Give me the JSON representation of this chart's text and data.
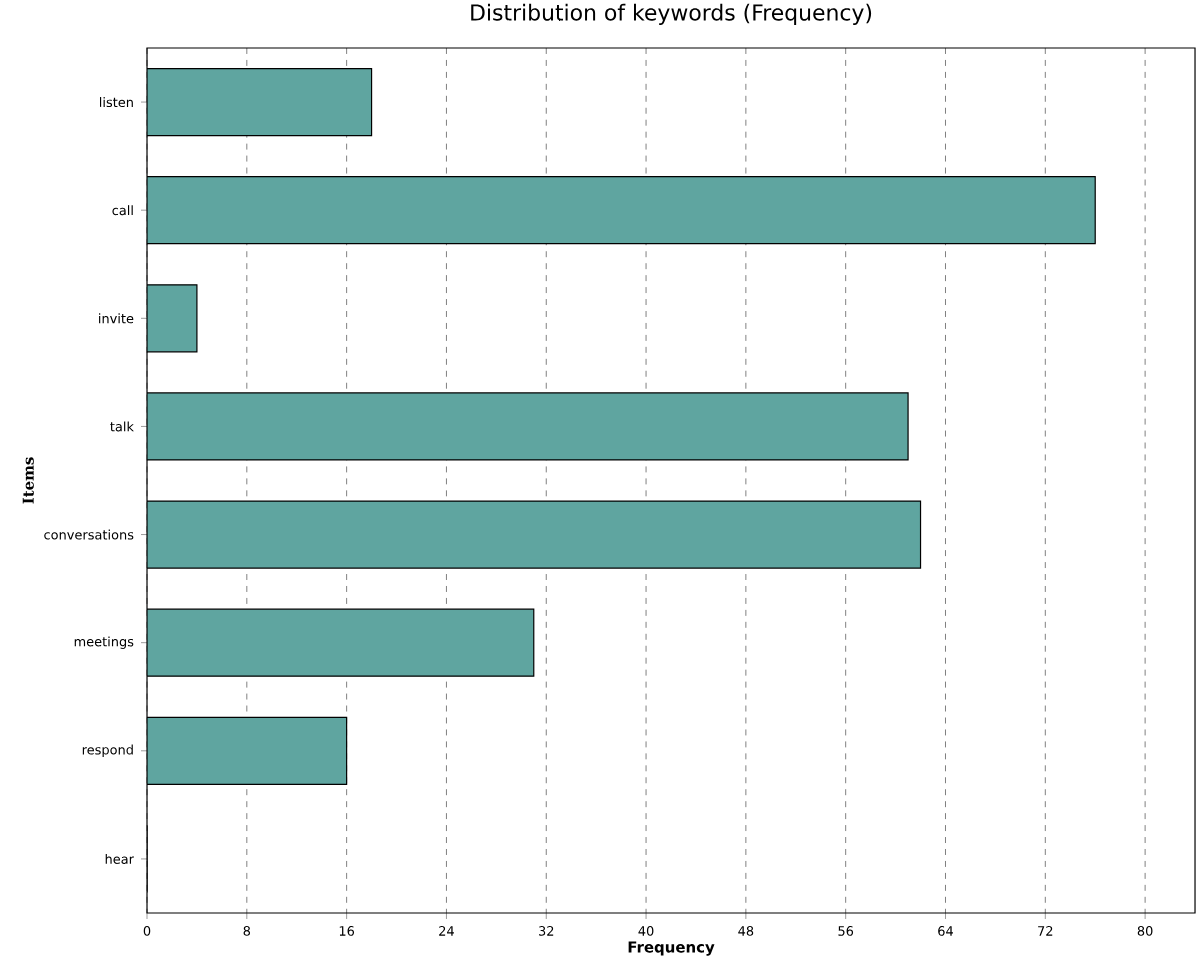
{
  "chart_data": {
    "type": "bar",
    "orientation": "horizontal",
    "title": "Distribution of keywords (Frequency)",
    "xlabel": "Frequency",
    "ylabel": "Items",
    "categories": [
      "listen",
      "call",
      "invite",
      "talk",
      "conversations",
      "meetings",
      "respond",
      "hear"
    ],
    "values": [
      18,
      76,
      4,
      61,
      62,
      31,
      16,
      0
    ],
    "color": "#5fa5a0",
    "xlim": [
      0,
      84
    ],
    "xticks": [
      0,
      8,
      16,
      24,
      32,
      40,
      48,
      56,
      64,
      72,
      80
    ],
    "grid": "x"
  }
}
